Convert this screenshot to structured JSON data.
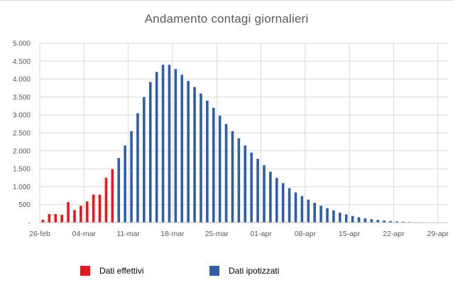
{
  "chart_data": {
    "type": "bar",
    "title": "Andamento contagi giornalieri",
    "ylim": [
      0,
      5000
    ],
    "y_ticks": [
      "-",
      "500",
      "1.000",
      "1.500",
      "2.000",
      "2.500",
      "3.000",
      "3.500",
      "4.000",
      "4.500",
      "5.000"
    ],
    "x_tick_labels": [
      "26-feb",
      "04-mar",
      "11-mar",
      "18-mar",
      "25-mar",
      "01-apr",
      "08-apr",
      "15-apr",
      "22-apr",
      "29-apr"
    ],
    "grid": true,
    "legend_position": "bottom",
    "series": [
      {
        "name": "Dati effettivi",
        "color": "#e8171b",
        "start_date": "2020-02-26",
        "values": [
          80,
          240,
          240,
          220,
          570,
          350,
          470,
          590,
          780,
          780,
          1250,
          1490
        ]
      },
      {
        "name": "Dati ipotizzati",
        "color": "#2e5fa6",
        "start_date": "2020-03-09",
        "values": [
          1800,
          2150,
          2550,
          3050,
          3500,
          3920,
          4200,
          4400,
          4400,
          4280,
          4120,
          3950,
          3780,
          3600,
          3400,
          3200,
          2980,
          2750,
          2550,
          2350,
          2150,
          1950,
          1780,
          1600,
          1420,
          1250,
          1100,
          960,
          840,
          740,
          640,
          550,
          470,
          400,
          340,
          280,
          230,
          185,
          150,
          120,
          95,
          75,
          58,
          44,
          33,
          24,
          17,
          12,
          8,
          5,
          3
        ]
      }
    ]
  }
}
